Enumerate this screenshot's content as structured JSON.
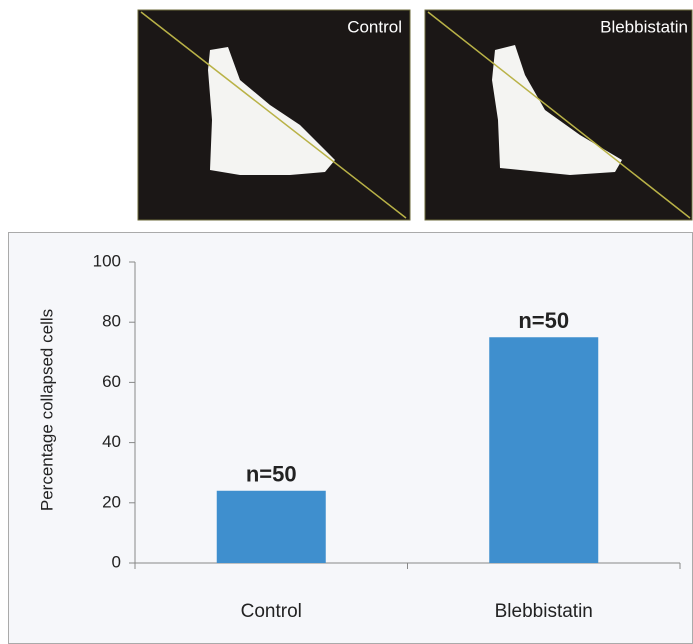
{
  "image_panels": [
    "Control",
    "Blebbistatin"
  ],
  "chart_data": {
    "type": "bar",
    "y_label": "Percentage collapsed cells",
    "categories": [
      "Control",
      "Blebbistatin"
    ],
    "values": [
      24,
      75
    ],
    "bar_labels": [
      "n=50",
      "n=50"
    ],
    "color": "#3f8fce",
    "ylim": [
      0,
      100
    ],
    "yticks": [
      0,
      20,
      40,
      60,
      80,
      100
    ],
    "grid": false
  }
}
